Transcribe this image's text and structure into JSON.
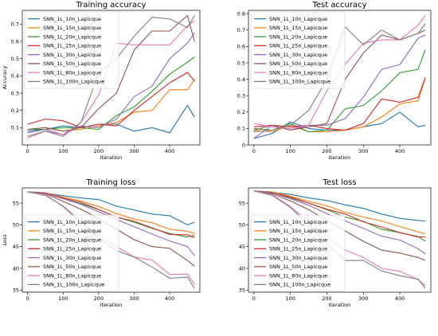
{
  "chart_data": [
    {
      "type": "line",
      "title": "Training accuracy",
      "xlabel": "Iteration",
      "ylabel": "Accuracy",
      "xlim": [
        -15,
        485
      ],
      "ylim": [
        0.0,
        0.78
      ],
      "xticks": [
        0,
        100,
        200,
        300,
        400
      ],
      "yticks": [
        0.1,
        0.2,
        0.3,
        0.4,
        0.5,
        0.6,
        0.7
      ],
      "legend": "upper-left",
      "series": [
        {
          "name": "SNN_1L_10n_Lapicque",
          "color": "#1f77b4",
          "x": [
            0,
            50,
            100,
            150,
            200,
            250,
            300,
            350,
            400,
            450,
            470
          ],
          "y": [
            0.08,
            0.09,
            0.11,
            0.1,
            0.12,
            0.12,
            0.08,
            0.1,
            0.07,
            0.23,
            0.16
          ]
        },
        {
          "name": "SNN_1L_15n_Lapicque",
          "color": "#ff7f0e",
          "x": [
            0,
            50,
            100,
            150,
            200,
            250,
            300,
            350,
            400,
            450,
            470
          ],
          "y": [
            0.09,
            0.1,
            0.08,
            0.09,
            0.11,
            0.13,
            0.19,
            0.2,
            0.32,
            0.32,
            0.38
          ]
        },
        {
          "name": "SNN_1L_20n_Lapicque",
          "color": "#2ca02c",
          "x": [
            0,
            50,
            100,
            150,
            200,
            250,
            300,
            350,
            400,
            450,
            470
          ],
          "y": [
            0.09,
            0.09,
            0.1,
            0.1,
            0.09,
            0.17,
            0.22,
            0.31,
            0.41,
            0.48,
            0.51
          ]
        },
        {
          "name": "SNN_1L_25n_Lapicque",
          "color": "#d62728",
          "x": [
            0,
            50,
            100,
            150,
            200,
            250,
            300,
            350,
            400,
            450,
            470
          ],
          "y": [
            0.12,
            0.15,
            0.14,
            0.1,
            0.12,
            0.11,
            0.2,
            0.28,
            0.36,
            0.42,
            0.37
          ]
        },
        {
          "name": "SNN_1L_30n_Lapicque",
          "color": "#9467bd",
          "x": [
            0,
            50,
            100,
            150,
            200,
            250,
            300,
            350,
            400,
            450,
            470
          ],
          "y": [
            0.07,
            0.09,
            0.06,
            0.11,
            0.1,
            0.15,
            0.28,
            0.34,
            0.5,
            0.59,
            0.65
          ]
        },
        {
          "name": "SNN_1L_50n_Lapicque",
          "color": "#8c564b",
          "x": [
            0,
            50,
            100,
            150,
            200,
            250,
            300,
            350,
            400,
            450,
            470
          ],
          "y": [
            0.09,
            0.1,
            0.08,
            0.1,
            0.21,
            0.3,
            0.55,
            0.66,
            0.66,
            0.75,
            0.6
          ]
        },
        {
          "name": "SNN_1L_80n_Lapicque",
          "color": "#e377c2",
          "x": [
            0,
            50,
            100,
            150,
            200,
            250,
            300,
            350,
            400,
            450,
            470
          ],
          "y": [
            0.04,
            0.08,
            0.06,
            0.13,
            0.29,
            0.59,
            0.58,
            0.58,
            0.58,
            0.69,
            0.72
          ]
        },
        {
          "name": "SNN_1L_100n_Lapicque",
          "color": "#7f7f7f",
          "x": [
            0,
            50,
            100,
            150,
            200,
            250,
            300,
            350,
            400,
            450,
            470
          ],
          "y": [
            0.05,
            0.08,
            0.05,
            0.13,
            0.42,
            0.5,
            0.63,
            0.74,
            0.73,
            0.68,
            0.75
          ]
        }
      ]
    },
    {
      "type": "line",
      "title": "Test accuracy",
      "xlabel": "Iteration",
      "ylabel": "",
      "xlim": [
        -15,
        485
      ],
      "ylim": [
        0.0,
        0.82
      ],
      "xticks": [
        0,
        100,
        200,
        300,
        400
      ],
      "yticks": [
        0.0,
        0.1,
        0.2,
        0.3,
        0.4,
        0.5,
        0.6,
        0.7,
        0.8
      ],
      "legend": "upper-left",
      "series": [
        {
          "name": "SNN_1L_10n_Lapicque",
          "color": "#1f77b4",
          "x": [
            0,
            50,
            100,
            150,
            200,
            250,
            300,
            350,
            400,
            450,
            470
          ],
          "y": [
            0.04,
            0.07,
            0.14,
            0.1,
            0.09,
            0.09,
            0.11,
            0.13,
            0.2,
            0.11,
            0.12
          ]
        },
        {
          "name": "SNN_1L_15n_Lapicque",
          "color": "#ff7f0e",
          "x": [
            0,
            50,
            100,
            150,
            200,
            250,
            300,
            350,
            400,
            450,
            470
          ],
          "y": [
            0.09,
            0.08,
            0.12,
            0.08,
            0.08,
            0.09,
            0.11,
            0.17,
            0.25,
            0.27,
            0.41
          ]
        },
        {
          "name": "SNN_1L_20n_Lapicque",
          "color": "#2ca02c",
          "x": [
            0,
            50,
            100,
            150,
            200,
            250,
            300,
            350,
            400,
            450,
            470
          ],
          "y": [
            0.1,
            0.09,
            0.13,
            0.08,
            0.09,
            0.22,
            0.24,
            0.33,
            0.44,
            0.46,
            0.58
          ]
        },
        {
          "name": "SNN_1L_25n_Lapicque",
          "color": "#d62728",
          "x": [
            0,
            50,
            100,
            150,
            200,
            250,
            300,
            350,
            400,
            450,
            470
          ],
          "y": [
            0.11,
            0.12,
            0.11,
            0.12,
            0.1,
            0.09,
            0.13,
            0.28,
            0.26,
            0.29,
            0.41
          ]
        },
        {
          "name": "SNN_1L_30n_Lapicque",
          "color": "#9467bd",
          "x": [
            0,
            50,
            100,
            150,
            200,
            250,
            300,
            350,
            400,
            450,
            470
          ],
          "y": [
            0.04,
            0.12,
            0.09,
            0.12,
            0.12,
            0.16,
            0.29,
            0.46,
            0.49,
            0.65,
            0.67
          ]
        },
        {
          "name": "SNN_1L_50n_Lapicque",
          "color": "#8c564b",
          "x": [
            0,
            50,
            100,
            150,
            200,
            250,
            300,
            350,
            400,
            450,
            470
          ],
          "y": [
            0.09,
            0.12,
            0.09,
            0.11,
            0.13,
            0.4,
            0.56,
            0.67,
            0.64,
            0.68,
            0.7
          ]
        },
        {
          "name": "SNN_1L_80n_Lapicque",
          "color": "#e377c2",
          "x": [
            0,
            50,
            100,
            150,
            200,
            250,
            300,
            350,
            400,
            450,
            470
          ],
          "y": [
            0.13,
            0.11,
            0.1,
            0.12,
            0.33,
            0.49,
            0.62,
            0.64,
            0.64,
            0.73,
            0.79
          ]
        },
        {
          "name": "SNN_1L_100n_Lapicque",
          "color": "#7f7f7f",
          "x": [
            0,
            50,
            100,
            150,
            200,
            250,
            300,
            350,
            400,
            450,
            470
          ],
          "y": [
            0.08,
            0.09,
            0.12,
            0.21,
            0.4,
            0.72,
            0.61,
            0.7,
            0.64,
            0.68,
            0.74
          ]
        }
      ]
    },
    {
      "type": "line",
      "title": "Training loss",
      "xlabel": "Iteration",
      "ylabel": "Loss",
      "xlim": [
        -15,
        485
      ],
      "ylim": [
        34.5,
        58.5
      ],
      "xticks": [
        0,
        100,
        200,
        300,
        400
      ],
      "yticks": [
        35,
        40,
        45,
        50,
        55
      ],
      "legend": "lower-left",
      "series": [
        {
          "name": "SNN_1L_10n_Lapicque",
          "color": "#1f77b4",
          "x": [
            0,
            50,
            100,
            150,
            200,
            250,
            300,
            350,
            400,
            450,
            470
          ],
          "y": [
            57.6,
            57.3,
            56.7,
            56.2,
            55.8,
            54.3,
            53.4,
            52.5,
            52.1,
            50.0,
            50.6
          ]
        },
        {
          "name": "SNN_1L_15n_Lapicque",
          "color": "#ff7f0e",
          "x": [
            0,
            50,
            100,
            150,
            200,
            250,
            300,
            350,
            400,
            450,
            470
          ],
          "y": [
            57.6,
            57.4,
            56.4,
            55.5,
            54.2,
            52.6,
            51.3,
            50.5,
            49.0,
            48.5,
            48.0
          ]
        },
        {
          "name": "SNN_1L_20n_Lapicque",
          "color": "#2ca02c",
          "x": [
            0,
            50,
            100,
            150,
            200,
            250,
            300,
            350,
            400,
            450,
            470
          ],
          "y": [
            57.6,
            57.3,
            56.0,
            54.9,
            53.5,
            51.8,
            50.6,
            49.2,
            48.0,
            47.2,
            47.6
          ]
        },
        {
          "name": "SNN_1L_25n_Lapicque",
          "color": "#d62728",
          "x": [
            0,
            50,
            100,
            150,
            200,
            250,
            300,
            350,
            400,
            450,
            470
          ],
          "y": [
            57.6,
            57.3,
            56.2,
            55.2,
            53.5,
            51.8,
            50.8,
            49.3,
            47.8,
            47.7,
            47.1
          ]
        },
        {
          "name": "SNN_1L_30n_Lapicque",
          "color": "#9467bd",
          "x": [
            0,
            50,
            100,
            150,
            200,
            250,
            300,
            350,
            400,
            450,
            470
          ],
          "y": [
            57.6,
            57.3,
            56.0,
            54.7,
            53.0,
            51.2,
            49.6,
            47.9,
            46.3,
            45.0,
            42.9
          ]
        },
        {
          "name": "SNN_1L_50n_Lapicque",
          "color": "#8c564b",
          "x": [
            0,
            50,
            100,
            150,
            200,
            250,
            300,
            350,
            400,
            450,
            470
          ],
          "y": [
            57.6,
            57.2,
            55.4,
            53.6,
            51.5,
            49.0,
            46.6,
            45.0,
            44.6,
            41.8,
            40.5
          ]
        },
        {
          "name": "SNN_1L_80n_Lapicque",
          "color": "#e377c2",
          "x": [
            0,
            50,
            100,
            150,
            200,
            250,
            300,
            350,
            400,
            450,
            470
          ],
          "y": [
            57.6,
            57.0,
            54.2,
            50.5,
            47.6,
            45.0,
            42.6,
            41.9,
            38.6,
            38.7,
            36.3
          ]
        },
        {
          "name": "SNN_1L_100n_Lapicque",
          "color": "#7f7f7f",
          "x": [
            0,
            50,
            100,
            150,
            200,
            250,
            300,
            350,
            400,
            450,
            470
          ],
          "y": [
            57.6,
            56.8,
            54.3,
            50.8,
            47.0,
            44.1,
            42.6,
            40.3,
            37.7,
            38.0,
            35.3
          ]
        }
      ]
    },
    {
      "type": "line",
      "title": "Test loss",
      "xlabel": "Iteration",
      "ylabel": "",
      "xlim": [
        -15,
        485
      ],
      "ylim": [
        34.5,
        58.5
      ],
      "xticks": [
        0,
        100,
        200,
        300,
        400
      ],
      "yticks": [
        35,
        40,
        45,
        50,
        55
      ],
      "legend": "lower-left",
      "series": [
        {
          "name": "SNN_1L_10n_Lapicque",
          "color": "#1f77b4",
          "x": [
            0,
            50,
            100,
            150,
            200,
            250,
            300,
            350,
            400,
            450,
            470
          ],
          "y": [
            57.8,
            57.5,
            57.0,
            56.2,
            55.6,
            54.6,
            53.8,
            52.5,
            51.5,
            51.0,
            50.9
          ]
        },
        {
          "name": "SNN_1L_15n_Lapicque",
          "color": "#ff7f0e",
          "x": [
            0,
            50,
            100,
            150,
            200,
            250,
            300,
            350,
            400,
            450,
            470
          ],
          "y": [
            57.8,
            57.6,
            56.6,
            55.4,
            54.4,
            52.9,
            51.8,
            50.9,
            49.6,
            48.4,
            47.9
          ]
        },
        {
          "name": "SNN_1L_20n_Lapicque",
          "color": "#2ca02c",
          "x": [
            0,
            50,
            100,
            150,
            200,
            250,
            300,
            350,
            400,
            450,
            470
          ],
          "y": [
            57.8,
            57.5,
            56.2,
            55.0,
            53.5,
            51.8,
            50.8,
            49.0,
            48.2,
            47.3,
            46.2
          ]
        },
        {
          "name": "SNN_1L_25n_Lapicque",
          "color": "#d62728",
          "x": [
            0,
            50,
            100,
            150,
            200,
            250,
            300,
            350,
            400,
            450,
            470
          ],
          "y": [
            57.8,
            57.4,
            56.4,
            55.0,
            53.6,
            52.5,
            50.7,
            49.5,
            48.2,
            47.2,
            47.2
          ]
        },
        {
          "name": "SNN_1L_30n_Lapicque",
          "color": "#9467bd",
          "x": [
            0,
            50,
            100,
            150,
            200,
            250,
            300,
            350,
            400,
            450,
            470
          ],
          "y": [
            57.8,
            57.4,
            56.0,
            54.5,
            52.6,
            50.9,
            49.2,
            47.4,
            46.5,
            44.5,
            43.3
          ]
        },
        {
          "name": "SNN_1L_50n_Lapicque",
          "color": "#8c564b",
          "x": [
            0,
            50,
            100,
            150,
            200,
            250,
            300,
            350,
            400,
            450,
            470
          ],
          "y": [
            57.8,
            57.2,
            55.5,
            53.5,
            51.0,
            48.6,
            46.2,
            44.2,
            43.5,
            42.5,
            41.8
          ]
        },
        {
          "name": "SNN_1L_80n_Lapicque",
          "color": "#e377c2",
          "x": [
            0,
            50,
            100,
            150,
            200,
            250,
            300,
            350,
            400,
            450,
            470
          ],
          "y": [
            57.8,
            57.0,
            54.2,
            50.7,
            47.4,
            44.2,
            42.5,
            40.0,
            39.3,
            37.4,
            36.0
          ]
        },
        {
          "name": "SNN_1L_100n_Lapicque",
          "color": "#7f7f7f",
          "x": [
            0,
            50,
            100,
            150,
            200,
            250,
            300,
            350,
            400,
            450,
            470
          ],
          "y": [
            57.8,
            56.8,
            54.0,
            50.0,
            45.6,
            41.8,
            41.8,
            39.4,
            38.3,
            37.5,
            35.4
          ]
        }
      ]
    }
  ]
}
